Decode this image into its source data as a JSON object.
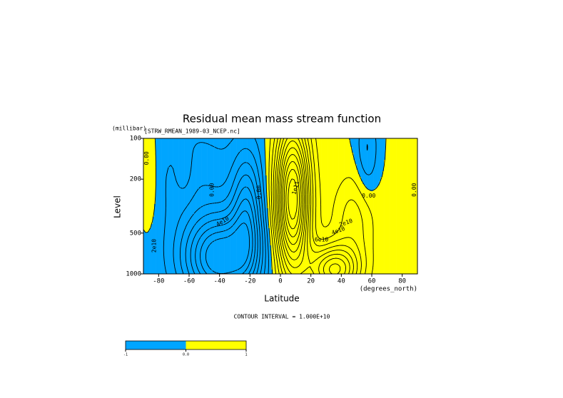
{
  "chart_data": {
    "type": "contour",
    "title": "Residual mean mass stream function",
    "subtitle": "[STRW_RMEAN_1989-03_NCEP.nc]",
    "y_unit": "(millibar)",
    "ylabel": "Level",
    "xlabel": "Latitude",
    "x_unit": "(degrees_north)",
    "note": "CONTOUR INTERVAL = 1.000E+10",
    "xlim": [
      -90,
      90
    ],
    "xticks": [
      -80,
      -60,
      -40,
      -20,
      0,
      20,
      40,
      60,
      80
    ],
    "ylim": [
      1000,
      100
    ],
    "yticks": [
      100,
      200,
      500,
      1000
    ],
    "ylog": true,
    "negative_color": "#00a5ff",
    "positive_color": "#ffff00",
    "levels": [
      -80000000000,
      -70000000000,
      -60000000000,
      -50000000000,
      -40000000000,
      -30000000000,
      -20000000000,
      -10000000000,
      0,
      10000000000,
      20000000000,
      30000000000,
      40000000000,
      50000000000,
      60000000000,
      70000000000,
      80000000000,
      90000000000,
      100000000000,
      110000000000,
      120000000000,
      130000000000
    ],
    "contour_labels": [
      "0.00",
      "0.00",
      "4e10",
      "2e10",
      "0.00",
      "1e11",
      "2e10",
      "4e10",
      "6e10",
      "0.00",
      "0.00"
    ],
    "colorbar": {
      "ticks": [
        -1,
        {
          "value": 0,
          "label": "0.0"
        },
        1
      ]
    }
  }
}
